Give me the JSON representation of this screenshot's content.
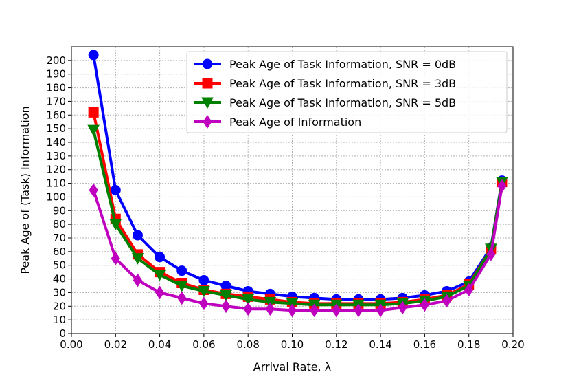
{
  "chart_data": {
    "type": "line",
    "title": "",
    "xlabel": "Arrival Rate, λ",
    "ylabel": "Peak Age of (Task) Information",
    "xlim": [
      0.0,
      0.2
    ],
    "ylim": [
      0,
      210
    ],
    "xticks": [
      "0.00",
      "0.02",
      "0.04",
      "0.06",
      "0.08",
      "0.10",
      "0.12",
      "0.14",
      "0.16",
      "0.18",
      "0.20"
    ],
    "xtick_values": [
      0,
      0.02,
      0.04,
      0.06,
      0.08,
      0.1,
      0.12,
      0.14,
      0.16,
      0.18,
      0.2
    ],
    "yticks": [
      "0",
      "10",
      "20",
      "30",
      "40",
      "50",
      "60",
      "70",
      "80",
      "90",
      "100",
      "110",
      "120",
      "130",
      "140",
      "150",
      "160",
      "170",
      "180",
      "190",
      "200"
    ],
    "ytick_values": [
      0,
      10,
      20,
      30,
      40,
      50,
      60,
      70,
      80,
      90,
      100,
      110,
      120,
      130,
      140,
      150,
      160,
      170,
      180,
      190,
      200
    ],
    "grid": true,
    "legend_position": "top-right",
    "x": [
      0.01,
      0.02,
      0.03,
      0.04,
      0.05,
      0.06,
      0.07,
      0.08,
      0.09,
      0.1,
      0.11,
      0.12,
      0.13,
      0.14,
      0.15,
      0.16,
      0.17,
      0.18,
      0.19,
      0.195
    ],
    "series": [
      {
        "name": "Peak Age of Task Information, SNR = 0dB",
        "color": "#0000ff",
        "marker": "circle",
        "values": [
          204,
          105,
          72,
          56,
          46,
          39,
          35,
          31,
          29,
          27,
          26,
          25,
          25,
          25,
          26,
          28,
          31,
          38,
          63,
          112
        ]
      },
      {
        "name": "Peak Age of Task Information, SNR = 3dB",
        "color": "#ff0000",
        "marker": "square",
        "values": [
          162,
          84,
          58,
          45,
          37,
          32,
          29,
          27,
          25,
          23,
          22,
          22,
          22,
          22,
          23,
          25,
          28,
          36,
          62,
          111
        ]
      },
      {
        "name": "Peak Age of Task Information, SNR = 5dB",
        "color": "#008000",
        "marker": "triangle-down",
        "values": [
          149,
          80,
          55,
          43,
          35,
          31,
          28,
          25,
          23,
          22,
          21,
          21,
          21,
          21,
          22,
          24,
          27,
          35,
          62,
          111
        ]
      },
      {
        "name": "Peak Age of Information",
        "color": "#bf00bf",
        "marker": "diamond",
        "values": [
          105,
          55,
          39,
          30,
          26,
          22,
          20,
          18,
          18,
          17,
          17,
          17,
          17,
          17,
          19,
          21,
          24,
          32,
          58,
          108
        ]
      }
    ]
  }
}
